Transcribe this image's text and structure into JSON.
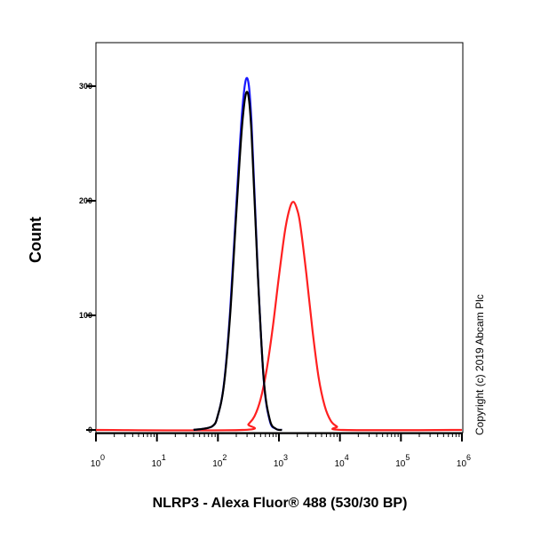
{
  "chart_data": {
    "type": "line",
    "title": "",
    "xlabel": "NLRP3 - Alexa Fluor® 488 (530/30 BP)",
    "ylabel": "Count",
    "xscale": "log10",
    "xlim_log10": [
      0,
      6
    ],
    "ylim": [
      0,
      340
    ],
    "x_ticks_log10": [
      0,
      1,
      2,
      3,
      4,
      5,
      6
    ],
    "x_tick_labels": [
      {
        "base": "10",
        "exp": "0"
      },
      {
        "base": "10",
        "exp": "1"
      },
      {
        "base": "10",
        "exp": "2"
      },
      {
        "base": "10",
        "exp": "3"
      },
      {
        "base": "10",
        "exp": "4"
      },
      {
        "base": "10",
        "exp": "5"
      },
      {
        "base": "10",
        "exp": "6"
      }
    ],
    "y_ticks": [
      0,
      100,
      200,
      300
    ],
    "y_tick_labels": [
      "0",
      "100",
      "200",
      "300"
    ],
    "grid": false,
    "series": [
      {
        "name": "red",
        "color": "#ff2020",
        "points": [
          [
            0,
            0
          ],
          [
            2.4,
            0
          ],
          [
            2.5,
            5
          ],
          [
            2.6,
            12
          ],
          [
            2.7,
            27
          ],
          [
            2.8,
            53
          ],
          [
            2.9,
            90
          ],
          [
            3.0,
            134
          ],
          [
            3.1,
            174
          ],
          [
            3.18,
            194
          ],
          [
            3.24,
            199
          ],
          [
            3.3,
            192
          ],
          [
            3.35,
            179
          ],
          [
            3.45,
            136
          ],
          [
            3.55,
            87
          ],
          [
            3.65,
            46
          ],
          [
            3.75,
            21
          ],
          [
            3.85,
            8
          ],
          [
            3.95,
            3
          ],
          [
            4.05,
            0
          ],
          [
            6,
            0
          ]
        ]
      },
      {
        "name": "blue",
        "color": "#1a1aff",
        "points": [
          [
            1.6,
            0
          ],
          [
            1.9,
            3
          ],
          [
            2.0,
            13
          ],
          [
            2.1,
            41
          ],
          [
            2.2,
            104
          ],
          [
            2.3,
            195
          ],
          [
            2.4,
            280
          ],
          [
            2.48,
            307
          ],
          [
            2.55,
            269
          ],
          [
            2.65,
            142
          ],
          [
            2.75,
            44
          ],
          [
            2.85,
            8
          ],
          [
            2.95,
            1
          ],
          [
            3.05,
            0
          ]
        ]
      },
      {
        "name": "black",
        "color": "#000000",
        "points": [
          [
            1.6,
            0
          ],
          [
            1.9,
            3
          ],
          [
            2.0,
            13
          ],
          [
            2.1,
            40
          ],
          [
            2.2,
            100
          ],
          [
            2.3,
            188
          ],
          [
            2.4,
            268
          ],
          [
            2.48,
            295
          ],
          [
            2.55,
            260
          ],
          [
            2.65,
            140
          ],
          [
            2.75,
            45
          ],
          [
            2.85,
            9
          ],
          [
            2.95,
            1
          ],
          [
            3.05,
            0
          ]
        ]
      }
    ]
  },
  "copyright": "Copyright (c) 2019 Abcam Plc"
}
